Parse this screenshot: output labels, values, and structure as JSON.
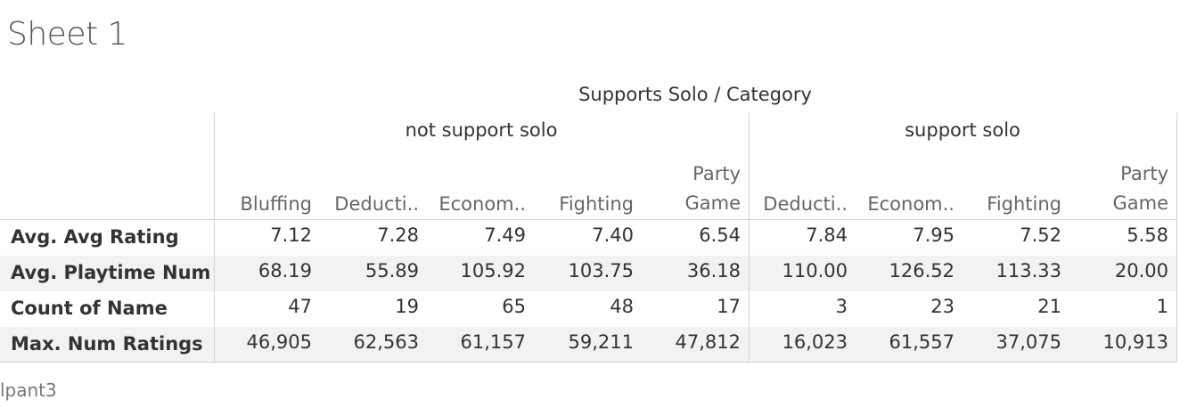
{
  "sheet_title": "Sheet 1",
  "footer_text": "lpant3",
  "chart_data": {
    "type": "table",
    "title": "Sheet 1",
    "header_title": "Supports Solo  /  Category",
    "groups": [
      {
        "name": "not support solo",
        "categories": [
          "Bluffing",
          "Deducti..",
          "Econom..",
          "Fighting",
          "Party Game"
        ]
      },
      {
        "name": "support solo",
        "categories": [
          "Deducti..",
          "Econom..",
          "Fighting",
          "Party Game"
        ]
      }
    ],
    "rows": [
      {
        "label": "Avg. Avg Rating",
        "values": [
          "7.12",
          "7.28",
          "7.49",
          "7.40",
          "6.54",
          "7.84",
          "7.95",
          "7.52",
          "5.58"
        ]
      },
      {
        "label": "Avg. Playtime Num",
        "values": [
          "68.19",
          "55.89",
          "105.92",
          "103.75",
          "36.18",
          "110.00",
          "126.52",
          "113.33",
          "20.00"
        ]
      },
      {
        "label": "Count of Name",
        "values": [
          "47",
          "19",
          "65",
          "48",
          "17",
          "3",
          "23",
          "21",
          "1"
        ]
      },
      {
        "label": "Max. Num Ratings",
        "values": [
          "46,905",
          "62,563",
          "61,157",
          "59,211",
          "47,812",
          "16,023",
          "61,557",
          "37,075",
          "10,913"
        ]
      }
    ]
  }
}
